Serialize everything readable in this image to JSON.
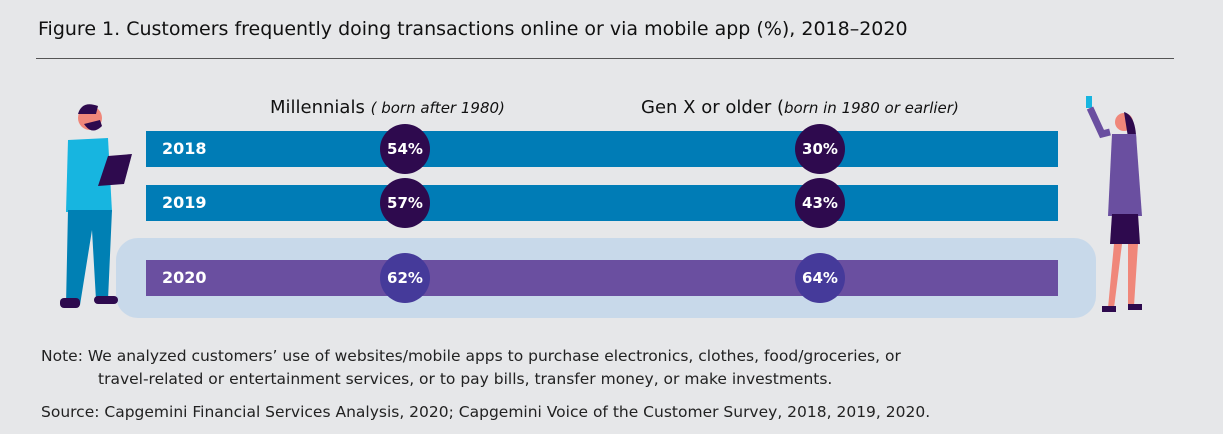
{
  "title": "Figure 1. Customers frequently doing transactions online or via mobile app (%), 2018–2020",
  "chart_data": {
    "type": "table",
    "title": "Figure 1. Customers frequently doing transactions online or via mobile app (%), 2018–2020",
    "columns": [
      {
        "name": "Millennials",
        "note": "( born after 1980)"
      },
      {
        "name": "Gen X or older (",
        "note": "born in 1980 or earlier)"
      }
    ],
    "rows": [
      {
        "year": "2018",
        "millennials": "54%",
        "genx": "30%"
      },
      {
        "year": "2019",
        "millennials": "57%",
        "genx": "43%"
      },
      {
        "year": "2020",
        "millennials": "62%",
        "genx": "64%"
      }
    ],
    "colors": {
      "bar_past": "#007cb6",
      "bar_2020": "#6a4fa0",
      "circle_past": "#2e0a4e",
      "circle_2020": "#453a9a",
      "highlight": "#c8d9ea"
    }
  },
  "note_line1": "Note: We analyzed customers’ use of websites/mobile apps to purchase electronics, clothes, food/groceries, or",
  "note_line2": "travel-related or entertainment services, or to pay bills, transfer money, or make investments.",
  "source": "Source: Capgemini Financial Services Analysis, 2020; Capgemini Voice of the Customer Survey, 2018, 2019, 2020."
}
